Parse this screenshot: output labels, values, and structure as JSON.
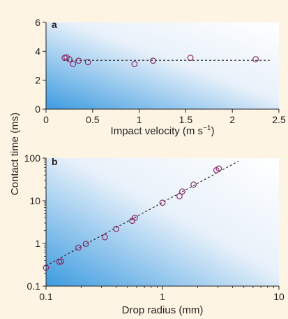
{
  "figure": {
    "shared_ylabel": "Contact time (ms)",
    "colors": {
      "background": "#fdf4e3",
      "plot_gradient_start": "#3d9be0",
      "plot_gradient_end": "#ffffff",
      "marker": "#8a2a6b",
      "line": "#231f20"
    }
  },
  "chart_data": [
    {
      "panel": "a",
      "type": "scatter",
      "xlabel": "Impact velocity (m s",
      "xlabel_unit_exponent": "−1",
      "xlabel_close": ")",
      "ylabel": "Contact time (ms)",
      "xlim": [
        0,
        2.5
      ],
      "ylim": [
        0,
        6
      ],
      "x_scale": "linear",
      "y_scale": "linear",
      "xticks": [
        0,
        0.5,
        1,
        1.5,
        2,
        2.5
      ],
      "xtick_labels": [
        "0",
        "0.5",
        "1",
        "1.5",
        "2",
        "2.5"
      ],
      "yticks": [
        0,
        2,
        4,
        6
      ],
      "ytick_labels": [
        "0",
        "2",
        "4",
        "6"
      ],
      "grid": false,
      "points": [
        {
          "x": 0.2,
          "y": 3.55
        },
        {
          "x": 0.22,
          "y": 3.58
        },
        {
          "x": 0.25,
          "y": 3.45
        },
        {
          "x": 0.29,
          "y": 3.12
        },
        {
          "x": 0.35,
          "y": 3.35
        },
        {
          "x": 0.45,
          "y": 3.25
        },
        {
          "x": 0.95,
          "y": 3.12
        },
        {
          "x": 1.15,
          "y": 3.35
        },
        {
          "x": 1.55,
          "y": 3.55
        },
        {
          "x": 2.25,
          "y": 3.45
        }
      ],
      "fit_line": {
        "type": "horizontal",
        "y": 3.38,
        "x_range": [
          0.18,
          2.4
        ],
        "style": "dashed"
      }
    },
    {
      "panel": "b",
      "type": "scatter",
      "xlabel": "Drop radius (mm)",
      "ylabel": "Contact time (ms)",
      "xlim": [
        0.1,
        10
      ],
      "ylim": [
        0.1,
        100
      ],
      "x_scale": "log",
      "y_scale": "log",
      "xticks": [
        0.1,
        1,
        10
      ],
      "xtick_labels": [
        "0.1",
        "1",
        "10"
      ],
      "yticks": [
        0.1,
        1,
        10,
        100
      ],
      "ytick_labels": [
        "0.1",
        "1",
        "10",
        "100"
      ],
      "grid": false,
      "points": [
        {
          "x": 0.1,
          "y": 0.27
        },
        {
          "x": 0.13,
          "y": 0.37
        },
        {
          "x": 0.135,
          "y": 0.38
        },
        {
          "x": 0.19,
          "y": 0.8
        },
        {
          "x": 0.22,
          "y": 0.98
        },
        {
          "x": 0.32,
          "y": 1.4
        },
        {
          "x": 0.4,
          "y": 2.2
        },
        {
          "x": 0.55,
          "y": 3.4
        },
        {
          "x": 0.58,
          "y": 4.0
        },
        {
          "x": 1.0,
          "y": 9.0
        },
        {
          "x": 1.4,
          "y": 12.8
        },
        {
          "x": 1.48,
          "y": 16.5
        },
        {
          "x": 1.85,
          "y": 24.0
        },
        {
          "x": 2.9,
          "y": 52.0
        },
        {
          "x": 3.05,
          "y": 57.0
        }
      ],
      "fit_line": {
        "type": "power",
        "from": {
          "x": 0.1,
          "y": 0.3
        },
        "to": {
          "x": 4.5,
          "y": 85
        },
        "style": "dashed"
      }
    }
  ]
}
